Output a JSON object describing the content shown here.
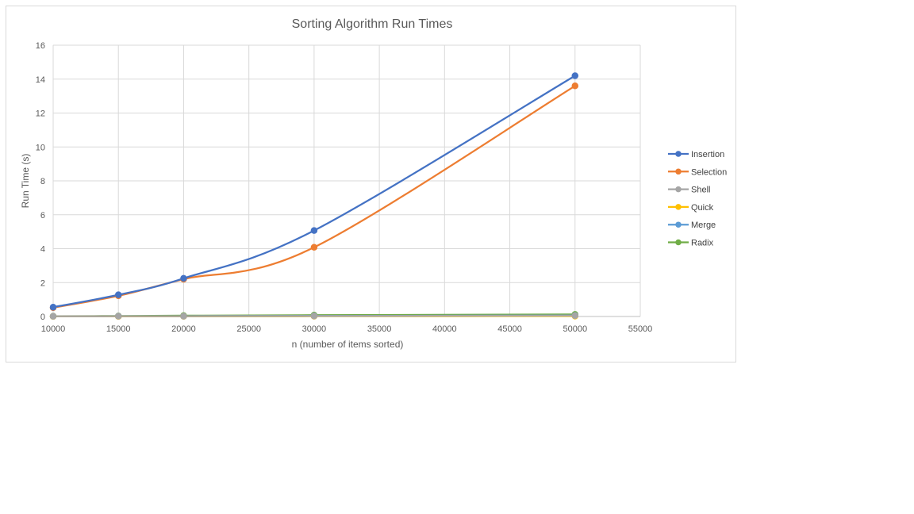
{
  "chart_data": {
    "type": "line",
    "title": "Sorting Algorithm Run Times",
    "xlabel": "n (number of items sorted)",
    "ylabel": "Run Time (s)",
    "xlim": [
      10000,
      55000
    ],
    "ylim": [
      0,
      16
    ],
    "x_ticks": [
      10000,
      15000,
      20000,
      25000,
      30000,
      35000,
      40000,
      45000,
      50000,
      55000
    ],
    "y_ticks": [
      0,
      2,
      4,
      6,
      8,
      10,
      12,
      14,
      16
    ],
    "grid": true,
    "smooth": true,
    "legend_position": "right",
    "x": [
      10000,
      15000,
      20000,
      30000,
      50000
    ],
    "series": [
      {
        "name": "Insertion",
        "color": "#4472c4",
        "values": [
          0.55,
          1.28,
          2.25,
          5.07,
          14.2
        ]
      },
      {
        "name": "Selection",
        "color": "#ed7d31",
        "values": [
          0.52,
          1.22,
          2.2,
          4.08,
          13.6
        ]
      },
      {
        "name": "Shell",
        "color": "#a5a5a5",
        "values": [
          0.01,
          0.015,
          0.02,
          0.03,
          0.05
        ]
      },
      {
        "name": "Quick",
        "color": "#ffc000",
        "values": [
          0.005,
          0.008,
          0.01,
          0.015,
          0.025
        ]
      },
      {
        "name": "Merge",
        "color": "#5b9bd5",
        "values": [
          0.01,
          0.015,
          0.02,
          0.035,
          0.06
        ]
      },
      {
        "name": "Radix",
        "color": "#70ad47",
        "values": [
          0.02,
          0.03,
          0.05,
          0.08,
          0.12
        ]
      }
    ]
  }
}
